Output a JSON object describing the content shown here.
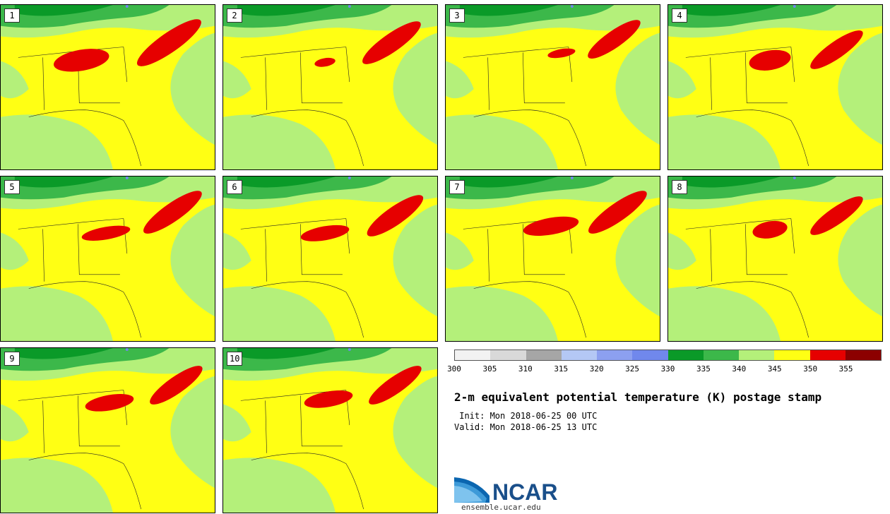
{
  "panels": [
    {
      "label": "1"
    },
    {
      "label": "2"
    },
    {
      "label": "3"
    },
    {
      "label": "4"
    },
    {
      "label": "5"
    },
    {
      "label": "6"
    },
    {
      "label": "7"
    },
    {
      "label": "8"
    },
    {
      "label": "9"
    },
    {
      "label": "10"
    }
  ],
  "colorbar": {
    "colors": [
      "#f2f2f2",
      "#d9d9d9",
      "#a6a6a6",
      "#b4c8f5",
      "#8ca0f0",
      "#7088ec",
      "#0a9a28",
      "#3cb84a",
      "#b4f07a",
      "#ffff14",
      "#e60000",
      "#8c0000"
    ],
    "ticks": [
      "300",
      "305",
      "310",
      "315",
      "320",
      "325",
      "330",
      "335",
      "340",
      "345",
      "350",
      "355"
    ]
  },
  "title": "2-m equivalent potential temperature (K) postage stamp",
  "init_line": " Init: Mon 2018-06-25 00 UTC",
  "valid_line": "Valid: Mon 2018-06-25 13 UTC",
  "logo_text": "NCAR",
  "url": "ensemble.ucar.edu",
  "map_colors": {
    "yellow": "#ffff14",
    "lightgreen": "#b4f07a",
    "green": "#3cb84a",
    "darkgreen": "#0a9a28",
    "red": "#e60000",
    "blue": "#7088ec"
  }
}
